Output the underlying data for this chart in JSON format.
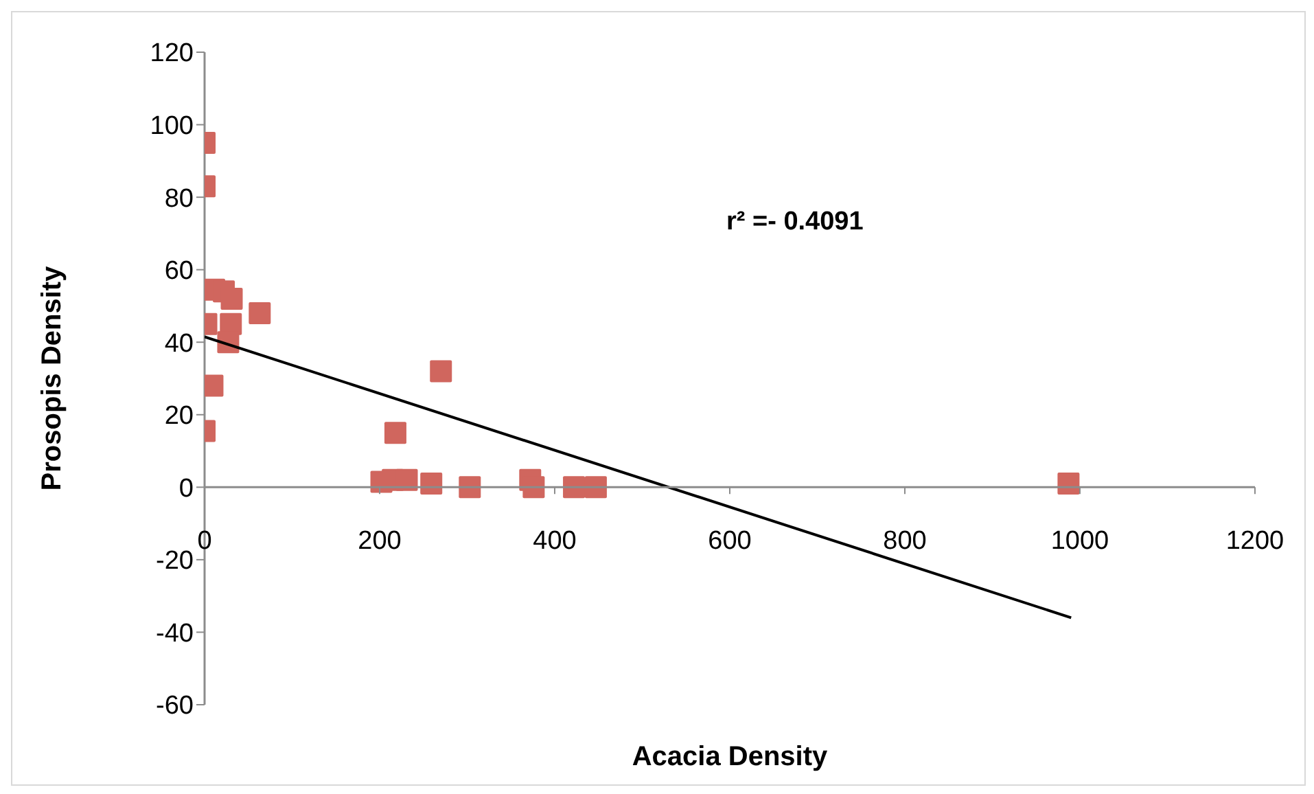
{
  "chart_data": {
    "type": "scatter",
    "xlabel": "Acacia Density",
    "ylabel": "Prosopis Density",
    "annotations": [
      "r² =- 0.4091"
    ],
    "xlim": [
      0,
      1200
    ],
    "xticks": [
      0,
      200,
      400,
      600,
      800,
      1000,
      1200
    ],
    "ylim": [
      -60,
      120
    ],
    "yticks": [
      -60,
      -40,
      -20,
      0,
      20,
      40,
      60,
      80,
      100,
      120
    ],
    "grid": false,
    "legend": false,
    "marker": "square",
    "series": [
      {
        "type": "scatter",
        "color": "#d0665e",
        "x": [
          0,
          0,
          11,
          22,
          31,
          63,
          2,
          30,
          27,
          9,
          0,
          270,
          218,
          202,
          215,
          231,
          259,
          303,
          372,
          376,
          422,
          447,
          987
        ],
        "values": [
          95,
          83,
          54.5,
          54,
          52,
          48,
          45,
          45,
          40,
          28,
          15.5,
          32,
          15,
          1.5,
          2,
          2,
          1,
          0,
          2,
          0,
          0,
          0,
          1
        ]
      },
      {
        "type": "line",
        "color": "#000000",
        "marker": "none",
        "x": [
          0,
          990
        ],
        "values": [
          41.5,
          -36
        ]
      }
    ]
  }
}
